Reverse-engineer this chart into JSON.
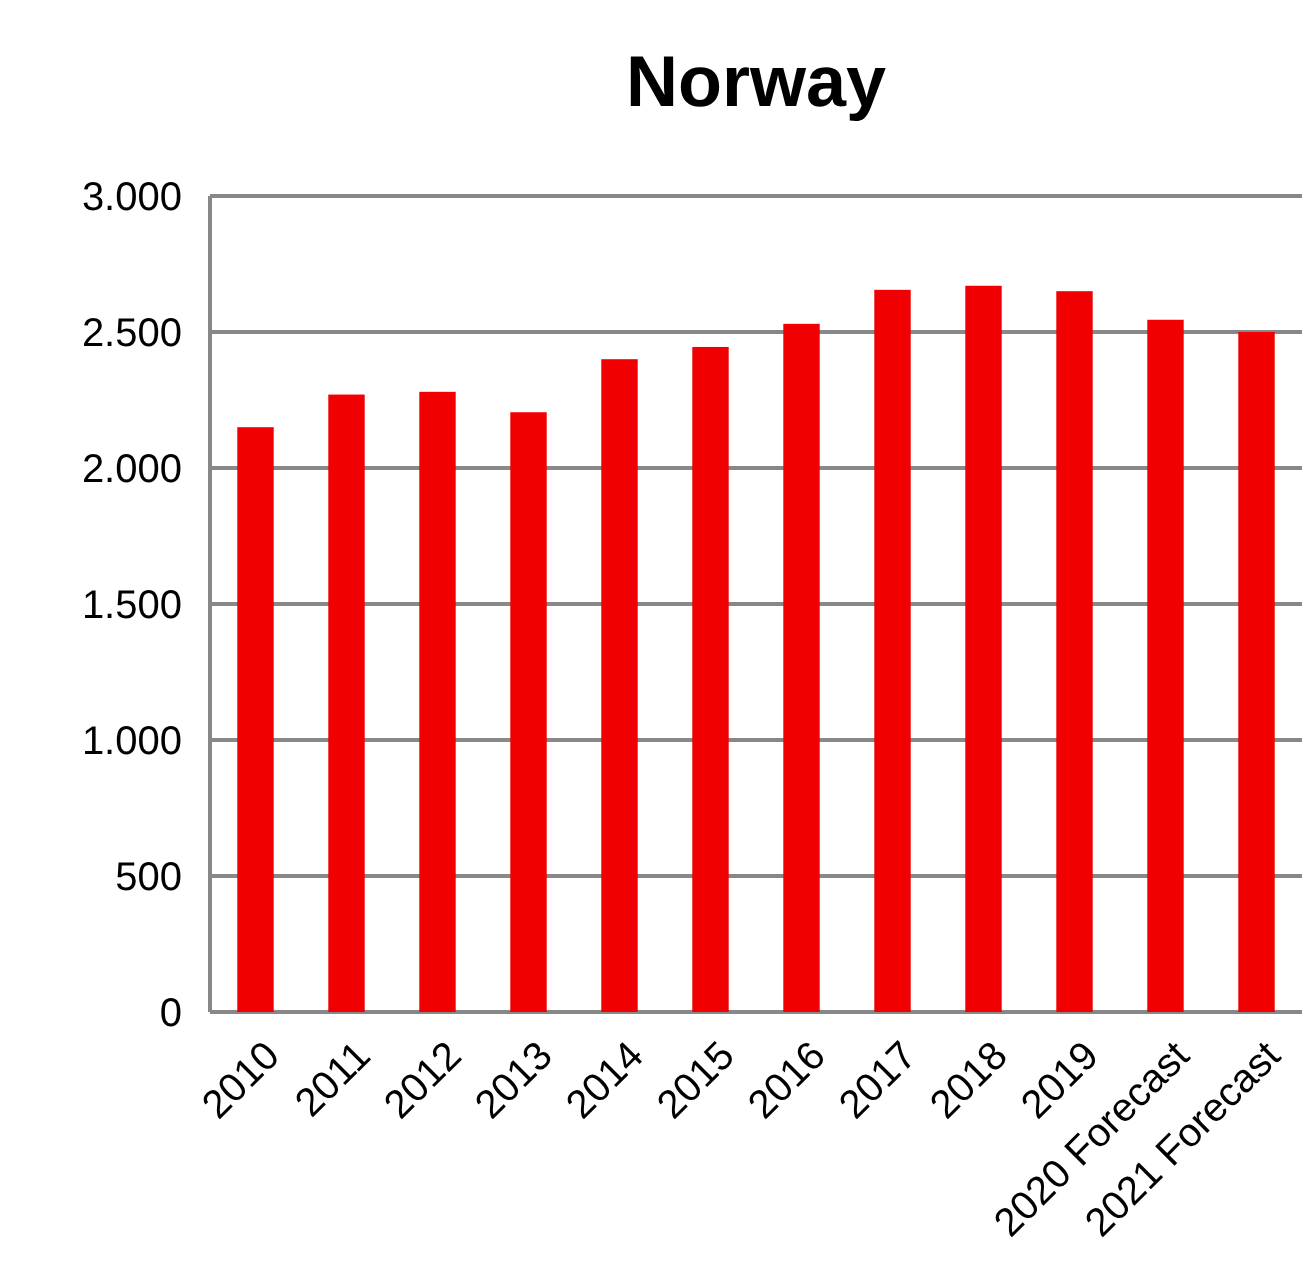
{
  "chart_data": {
    "type": "bar",
    "title": "Norway",
    "categories": [
      "2010",
      "2011",
      "2012",
      "2013",
      "2014",
      "2015",
      "2016",
      "2017",
      "2018",
      "2019",
      "2020 Forecast",
      "2021 Forecast"
    ],
    "values": [
      2150,
      2270,
      2280,
      2205,
      2400,
      2445,
      2530,
      2655,
      2670,
      2650,
      2545,
      2500
    ],
    "color": "#f00000",
    "ylim": [
      0,
      3000
    ],
    "yticks": [
      {
        "value": 0,
        "label": "0"
      },
      {
        "value": 500,
        "label": "500"
      },
      {
        "value": 1000,
        "label": "1.000"
      },
      {
        "value": 1500,
        "label": "1.500"
      },
      {
        "value": 2000,
        "label": "2.000"
      },
      {
        "value": 2500,
        "label": "2.500"
      },
      {
        "value": 3000,
        "label": "3.000"
      }
    ],
    "grid": "y"
  }
}
